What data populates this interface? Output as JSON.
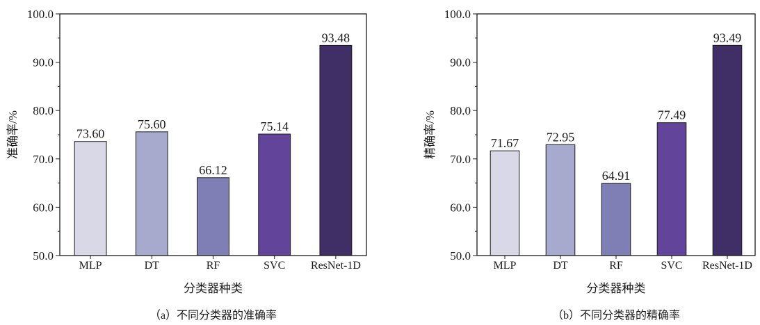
{
  "chart_data": [
    {
      "type": "bar",
      "caption": "（a）不同分类器的准确率",
      "xlabel": "分类器种类",
      "ylabel": "准确率/%",
      "categories": [
        "MLP",
        "DT",
        "RF",
        "SVC",
        "ResNet-1D"
      ],
      "values": [
        73.6,
        75.6,
        66.12,
        75.14,
        93.48
      ],
      "value_labels": [
        "73.60",
        "75.60",
        "66.12",
        "75.14",
        "93.48"
      ],
      "ylim": [
        50.0,
        100.0
      ],
      "yticks": [
        "50.0",
        "60.0",
        "70.0",
        "80.0",
        "90.0",
        "100.0"
      ],
      "grid": false,
      "bar_colors": [
        "#d8d8e6",
        "#a7a9cd",
        "#7f7fb6",
        "#62459b",
        "#3f2f66"
      ]
    },
    {
      "type": "bar",
      "caption": "（b）不同分类器的精确率",
      "xlabel": "分类器种类",
      "ylabel": "精确率/%",
      "categories": [
        "MLP",
        "DT",
        "RF",
        "SVC",
        "ResNet-1D"
      ],
      "values": [
        71.67,
        72.95,
        64.91,
        77.49,
        93.49
      ],
      "value_labels": [
        "71.67",
        "72.95",
        "64.91",
        "77.49",
        "93.49"
      ],
      "ylim": [
        50.0,
        100.0
      ],
      "yticks": [
        "50.0",
        "60.0",
        "70.0",
        "80.0",
        "90.0",
        "100.0"
      ],
      "grid": false,
      "bar_colors": [
        "#d8d8e6",
        "#a7a9cd",
        "#7f7fb6",
        "#62459b",
        "#3f2f66"
      ]
    }
  ]
}
